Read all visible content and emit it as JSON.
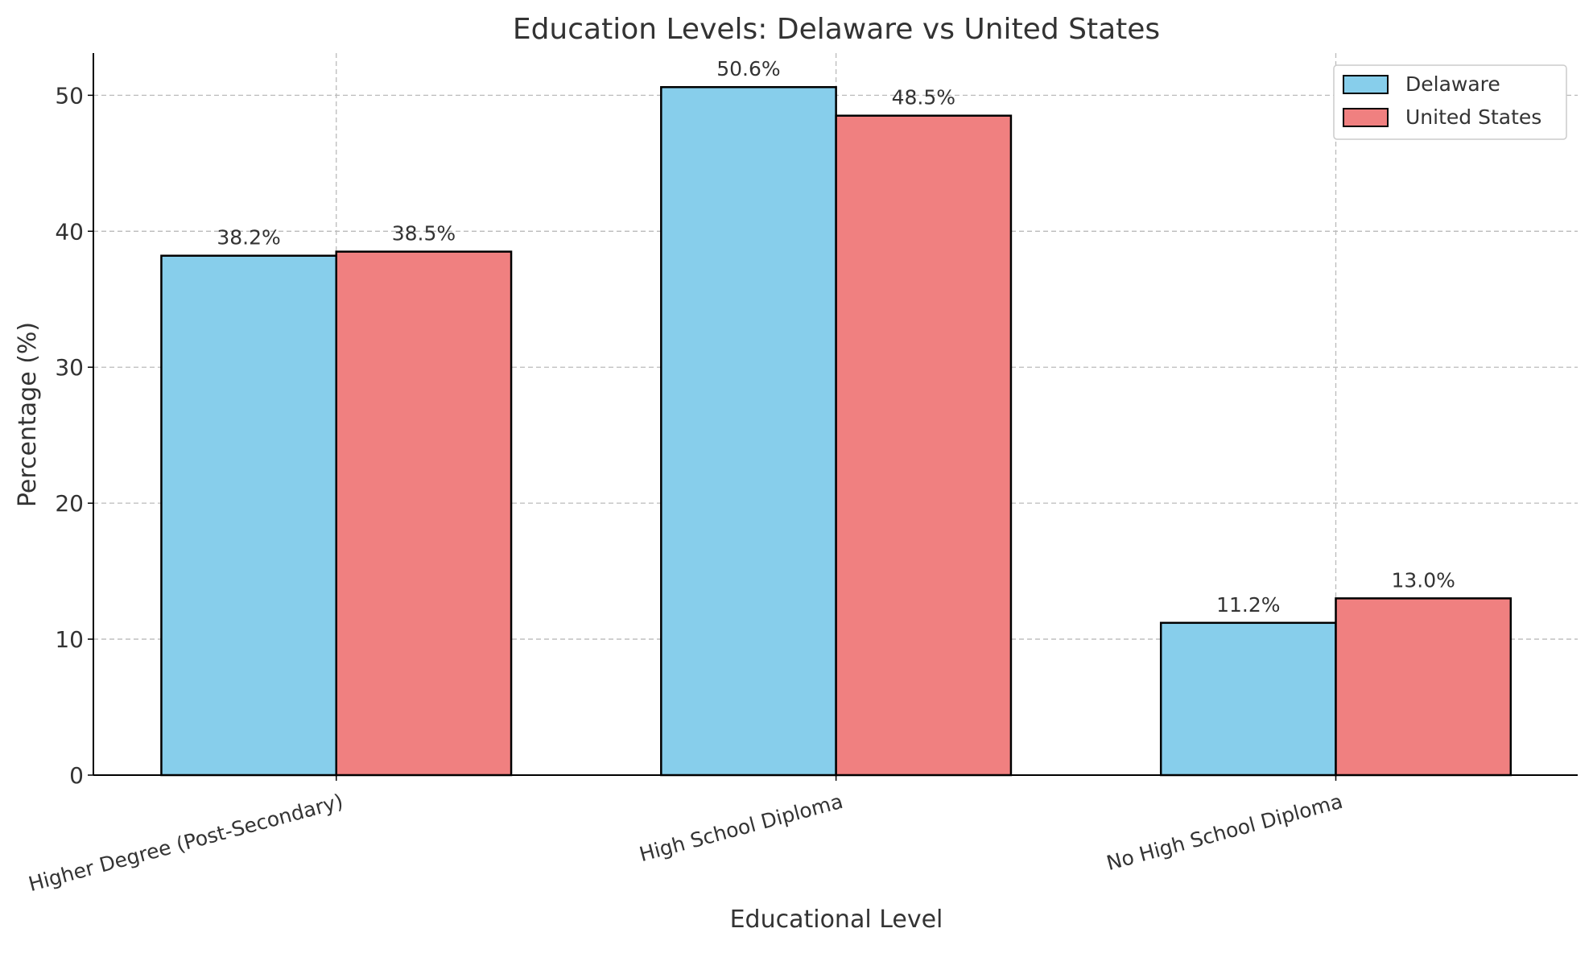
{
  "chart_data": {
    "type": "bar",
    "title": "Education Levels: Delaware vs United States",
    "xlabel": "Educational Level",
    "ylabel": "Percentage (%)",
    "categories": [
      "Higher Degree (Post-Secondary)",
      "High School Diploma",
      "No High School Diploma"
    ],
    "series": [
      {
        "name": "Delaware",
        "values": [
          38.2,
          50.6,
          11.2
        ],
        "labels": [
          "38.2%",
          "50.6%",
          "11.2%"
        ],
        "color": "#87CEEB"
      },
      {
        "name": "United States",
        "values": [
          38.5,
          48.5,
          13.0
        ],
        "labels": [
          "38.5%",
          "48.5%",
          "13.0%"
        ],
        "color": "#F08080"
      }
    ],
    "yticks": [
      0,
      10,
      20,
      30,
      40,
      50
    ],
    "ytick_labels": [
      "0",
      "10",
      "20",
      "30",
      "40",
      "50"
    ],
    "ylim": [
      0,
      53.1
    ],
    "grid": true,
    "legend": "top-right"
  }
}
